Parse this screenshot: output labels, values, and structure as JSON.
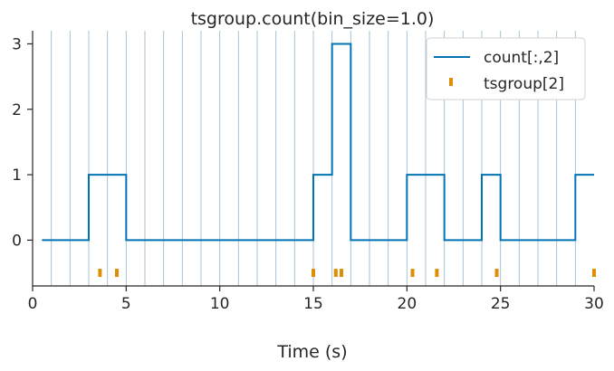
{
  "chart_data": {
    "type": "line",
    "title": "tsgroup.count(bin_size=1.0)",
    "xlabel": "Time (s)",
    "ylabel": "",
    "xlim": [
      0,
      30
    ],
    "ylim": [
      -0.7,
      3.2
    ],
    "xticks": [
      0,
      5,
      10,
      15,
      20,
      25,
      30
    ],
    "yticks": [
      0,
      1,
      2,
      3
    ],
    "grid": false,
    "bin_edges": [
      1,
      2,
      3,
      4,
      5,
      6,
      7,
      8,
      9,
      10,
      11,
      12,
      13,
      14,
      15,
      16,
      17,
      18,
      19,
      20,
      21,
      22,
      23,
      24,
      25,
      26,
      27,
      28,
      29
    ],
    "legend_position": "top-right",
    "series": [
      {
        "name": "count[:,2]",
        "style": "step",
        "color": "#0173b2",
        "x": [
          0.5,
          1.5,
          2.5,
          3.5,
          4.5,
          5.5,
          6.5,
          7.5,
          8.5,
          9.5,
          10.5,
          11.5,
          12.5,
          13.5,
          14.5,
          15.5,
          16.5,
          17.5,
          18.5,
          19.5,
          20.5,
          21.5,
          22.5,
          23.5,
          24.5,
          25.5,
          26.5,
          27.5,
          28.5,
          29.5,
          30.0
        ],
        "y": [
          0,
          0,
          0,
          1,
          1,
          0,
          0,
          0,
          0,
          0,
          0,
          0,
          0,
          0,
          0,
          1,
          3,
          0,
          0,
          0,
          1,
          1,
          0,
          0,
          1,
          0,
          0,
          0,
          0,
          1,
          1
        ]
      },
      {
        "name": "tsgroup[2]",
        "style": "event-marker",
        "color": "#de8f05",
        "y_level": -0.5,
        "x": [
          3.6,
          4.5,
          15.0,
          16.2,
          16.5,
          20.3,
          21.6,
          24.8,
          30.0
        ]
      }
    ]
  }
}
